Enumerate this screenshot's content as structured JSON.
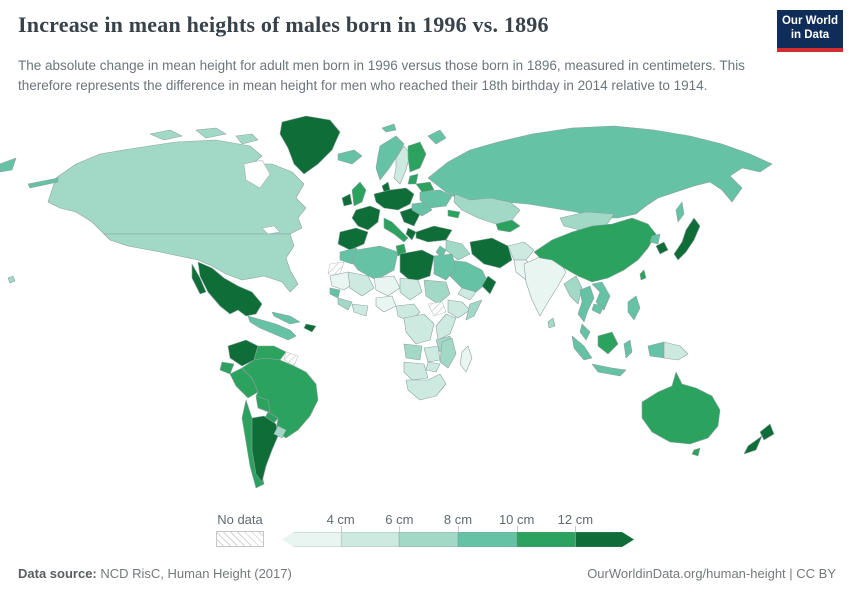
{
  "header": {
    "title": "Increase in mean heights of males born in 1996 vs. 1896",
    "subtitle": "The absolute change in mean height for adult men born in 1996 versus those born in 1896, measured in centimeters. This therefore represents the difference in mean height for men who reached their 18th birthday in 2014 relative to 1914.",
    "logo": {
      "line1": "Our World",
      "line2": "in Data",
      "bg_color": "#102d59",
      "accent_color": "#d42b2f"
    }
  },
  "legend": {
    "no_data_label": "No data",
    "tick_labels": [
      "4 cm",
      "6 cm",
      "8 cm",
      "10 cm",
      "12 cm"
    ],
    "bin_colors": [
      "#e8f5f1",
      "#cdeae0",
      "#a2d9c6",
      "#66c2a4",
      "#2ca25f",
      "#0f6e38"
    ],
    "no_data_fill": "#ffffff",
    "no_data_hatch": "#d4d4d4",
    "no_data_border": "#c6c6c6"
  },
  "chart_data": {
    "type": "heatmap",
    "subtype": "choropleth-world-map",
    "title": "Increase in mean heights of males born in 1996 vs. 1896",
    "unit": "cm",
    "bin_labels": [
      "<4 cm",
      "4-6 cm",
      "6-8 cm",
      "8-10 cm",
      "10-12 cm",
      ">12 cm",
      "No data"
    ],
    "legend_position": "bottom",
    "region_values": {
      "canada": 2,
      "united-states": 2,
      "greenland": 5,
      "mexico": 5,
      "baja-california": 5,
      "cuba": 3,
      "hispaniola": 5,
      "central-america": 3,
      "colombia": 5,
      "venezuela": 4,
      "guyanas": "no-data",
      "ecuador": 4,
      "peru": 4,
      "brazil": 4,
      "bolivia": 4,
      "paraguay": 4,
      "chile": 4,
      "argentina": 5,
      "uruguay": 2,
      "iceland": 3,
      "ireland": 5,
      "united-kingdom": 4,
      "norway": 3,
      "sweden": 1,
      "finland": 4,
      "baltics": 4,
      "denmark": 5,
      "central-europe": 5,
      "france": 5,
      "iberia": 5,
      "italy": 4,
      "balkans": 5,
      "greece": 5,
      "romania-hungary": 3,
      "ukraine": 3,
      "belarus": 4,
      "russia": 3,
      "svalbard": 3,
      "novaya-zemlya": 3,
      "kazakhstan": 2,
      "central-asia": 4,
      "caucasus": 4,
      "turkey": 5,
      "iraq-syria": 2,
      "levant": 3,
      "iran": 5,
      "afghanistan": 1,
      "pakistan": 0,
      "saudi-arabia": 3,
      "yemen": 1,
      "oman": 5,
      "india": 0,
      "sri-lanka": 2,
      "china": 4,
      "mongolia": 2,
      "north-korea": 3,
      "south-korea": 5,
      "japan": 5,
      "taiwan": 4,
      "myanmar": 2,
      "thailand": 3,
      "vietnam-laos": 3,
      "cambodia": 3,
      "malaysia": 3,
      "sumatra": 3,
      "borneo": 4,
      "java": 3,
      "sulawesi": 3,
      "philippines": 3,
      "west-new-guinea": 3,
      "papua-new-guinea": 1,
      "morocco": 3,
      "western-sahara": "no-data",
      "algeria": 3,
      "tunisia": 4,
      "libya": 5,
      "egypt": 3,
      "mauritania": 0,
      "mali": 1,
      "niger": 0,
      "chad": 1,
      "sudan": 2,
      "south-sudan": "no-data",
      "ethiopia": 1,
      "somalia": 2,
      "senegal": 3,
      "guinea": 2,
      "ghana-ivory-coast": 1,
      "nigeria": 0,
      "cameroon": 1,
      "dr-congo": 1,
      "kenya-uganda": 1,
      "tanzania": 2,
      "angola": 2,
      "zambia": 1,
      "mozambique": 2,
      "zimbabwe": 1,
      "namibia-botswana": 1,
      "south-africa": 1,
      "madagascar": 0,
      "australia": 4,
      "tasmania": 4,
      "new-zealand": 5,
      "hawaii": 2,
      "pacific-fragment": 3
    }
  },
  "footer": {
    "source_label": "Data source:",
    "source_text": " NCD RisC, Human Height (2017)",
    "link_text": "OurWorldinData.org/human-height | CC BY"
  }
}
